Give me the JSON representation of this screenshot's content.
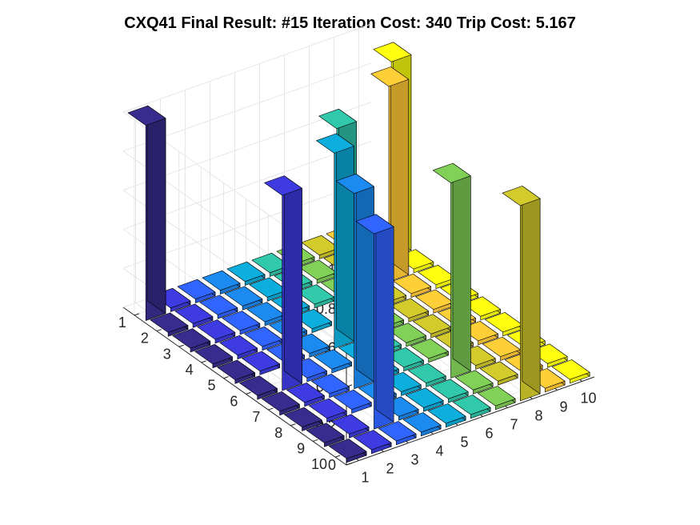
{
  "chart_data": {
    "type": "bar3",
    "title": "CXQ41 Final Result: #15 Iteration Cost: 340 Trip Cost: 5.167",
    "xlabel": "",
    "ylabel": "",
    "zlabel": "",
    "rows": [
      "1",
      "2",
      "3",
      "4",
      "5",
      "6",
      "7",
      "8",
      "9",
      "10"
    ],
    "columns": [
      "1",
      "2",
      "3",
      "4",
      "5",
      "6",
      "7",
      "8",
      "9",
      "10"
    ],
    "zlim": [
      0,
      1
    ],
    "z_ticks": [
      "0",
      "0.2",
      "0.4",
      "0.6",
      "0.8",
      "1"
    ],
    "grid": true,
    "legend": "none",
    "colormap": "parula",
    "series_colors": [
      "#352a87",
      "#3a38d6",
      "#2e60f7",
      "#1a84e6",
      "#0ba6d2",
      "#2ebfa4",
      "#7bc755",
      "#c9c029",
      "#fcc535",
      "#f9fb0e"
    ],
    "matrix": [
      [
        1,
        0,
        0,
        0,
        0,
        0,
        0,
        0,
        0,
        0
      ],
      [
        0,
        0,
        0,
        0,
        0,
        0,
        0,
        0,
        0,
        1
      ],
      [
        0,
        0,
        0,
        0,
        0,
        0,
        0,
        0,
        1,
        0
      ],
      [
        0,
        0,
        0,
        0,
        0,
        1,
        0,
        0,
        0,
        0
      ],
      [
        0,
        0,
        0,
        0,
        1,
        0,
        0,
        0,
        0,
        0
      ],
      [
        0,
        1,
        0,
        0,
        0,
        0,
        0,
        0,
        0,
        0
      ],
      [
        0,
        0,
        0,
        1,
        0,
        0,
        0,
        0,
        0,
        0
      ],
      [
        0,
        0,
        0,
        0,
        0,
        0,
        1,
        0,
        0,
        0
      ],
      [
        0,
        0,
        1,
        0,
        0,
        0,
        0,
        0,
        0,
        0
      ],
      [
        0,
        0,
        0,
        0,
        0,
        0,
        0,
        1,
        0,
        0
      ]
    ]
  }
}
